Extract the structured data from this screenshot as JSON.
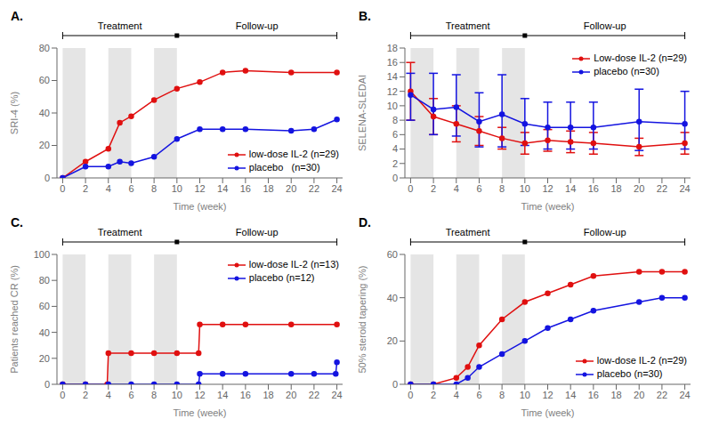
{
  "chart_data": [
    {
      "type": "line",
      "title": "A.",
      "xlabel": "Time  (week)",
      "ylabel": "SRI-4 (%)",
      "xlim": [
        -0.5,
        24.5
      ],
      "xticks": [
        0,
        2,
        4,
        6,
        8,
        10,
        12,
        14,
        16,
        18,
        20,
        22,
        24
      ],
      "ylim": [
        0,
        80
      ],
      "yticks": [
        0,
        20,
        40,
        60,
        80
      ],
      "grid": false,
      "legend": "lower right",
      "bands": [
        [
          0,
          2
        ],
        [
          4,
          6
        ],
        [
          8,
          10
        ]
      ],
      "annotations": [
        {
          "text": "Treatment",
          "x": [
            0,
            10
          ]
        },
        {
          "text": "Follow-up",
          "x": [
            10,
            24
          ]
        }
      ],
      "series": [
        {
          "name": "low-dose IL-2 (n=29)",
          "color": "#e01010",
          "marker": "circle",
          "x": [
            0,
            2,
            4,
            5,
            6,
            8,
            10,
            12,
            14,
            16,
            20,
            24
          ],
          "values": [
            0,
            10,
            18,
            34,
            38,
            48,
            55,
            59,
            65,
            66,
            65,
            65
          ]
        },
        {
          "name": "placebo   (n=30)",
          "color": "#1414e0",
          "marker": "circle",
          "x": [
            0,
            2,
            4,
            5,
            6,
            8,
            10,
            12,
            14,
            16,
            20,
            22,
            24
          ],
          "values": [
            0,
            7,
            7,
            10,
            9,
            13,
            24,
            30,
            30,
            30,
            29,
            30,
            36
          ]
        }
      ]
    },
    {
      "type": "line",
      "title": "B.",
      "xlabel": "Time  (week)",
      "ylabel": "SELENA-SLEDAI",
      "xlim": [
        -0.5,
        24.5
      ],
      "xticks": [
        0,
        2,
        4,
        6,
        8,
        10,
        12,
        14,
        16,
        18,
        20,
        22,
        24
      ],
      "ylim": [
        0,
        18
      ],
      "yticks": [
        0,
        2,
        4,
        6,
        8,
        10,
        12,
        14,
        16,
        18
      ],
      "grid": false,
      "legend": "upper right",
      "bands": [
        [
          0,
          2
        ],
        [
          4,
          6
        ],
        [
          8,
          10
        ]
      ],
      "annotations": [
        {
          "text": "Treatment",
          "x": [
            0,
            10
          ]
        },
        {
          "text": "Follow-up",
          "x": [
            10,
            24
          ]
        }
      ],
      "series": [
        {
          "name": "Low-dose IL-2 (n=29)",
          "color": "#e01010",
          "marker": "circle",
          "x": [
            0,
            2,
            4,
            6,
            8,
            10,
            12,
            14,
            16,
            20,
            24
          ],
          "values": [
            12.0,
            8.5,
            7.5,
            6.5,
            5.5,
            4.8,
            5.2,
            5.0,
            4.8,
            4.3,
            4.8
          ],
          "yerr_lo": [
            4.0,
            2.5,
            2.5,
            2.0,
            1.5,
            1.5,
            1.5,
            1.5,
            1.5,
            1.2,
            1.5
          ],
          "yerr_hi": [
            4.0,
            2.5,
            2.5,
            2.0,
            1.5,
            1.5,
            1.5,
            1.5,
            1.5,
            1.2,
            1.5
          ]
        },
        {
          "name": "placebo (n=30)",
          "color": "#1414e0",
          "marker": "circle",
          "x": [
            0,
            2,
            4,
            6,
            8,
            10,
            12,
            14,
            16,
            20,
            24
          ],
          "values": [
            11.5,
            9.5,
            9.8,
            7.8,
            8.8,
            7.5,
            7.0,
            7.0,
            7.0,
            7.8,
            7.5
          ],
          "yerr_lo": [
            3.5,
            3.5,
            4.0,
            3.5,
            4.5,
            3.0,
            3.0,
            3.0,
            3.0,
            4.0,
            3.5
          ],
          "yerr_hi": [
            3.0,
            5.0,
            4.5,
            4.0,
            5.5,
            3.5,
            3.5,
            3.5,
            3.5,
            4.5,
            4.5
          ]
        }
      ]
    },
    {
      "type": "line",
      "title": "C.",
      "xlabel": "Time (week)",
      "ylabel": "Patients reached CR (%)",
      "xlim": [
        -0.5,
        24.5
      ],
      "xticks": [
        0,
        2,
        4,
        6,
        8,
        10,
        12,
        14,
        16,
        18,
        20,
        22,
        24
      ],
      "ylim": [
        0,
        100
      ],
      "yticks": [
        0,
        20,
        40,
        60,
        80,
        100
      ],
      "grid": false,
      "legend": "upper right",
      "bands": [
        [
          0,
          2
        ],
        [
          4,
          6
        ],
        [
          8,
          10
        ]
      ],
      "annotations": [
        {
          "text": "Treatment",
          "x": [
            0,
            10
          ]
        },
        {
          "text": "Follow-up",
          "x": [
            10,
            24
          ]
        }
      ],
      "series": [
        {
          "name": "low-dose IL-2 (n=13)",
          "color": "#e01010",
          "marker": "circle",
          "x": [
            0,
            2,
            3.9,
            4,
            6,
            8,
            10,
            11.9,
            12,
            14,
            16,
            20,
            24
          ],
          "values": [
            0,
            0,
            0,
            24,
            24,
            24,
            24,
            24,
            46,
            46,
            46,
            46,
            46
          ]
        },
        {
          "name": "placebo (n=12)",
          "color": "#1414e0",
          "marker": "circle",
          "x": [
            0,
            2,
            4,
            6,
            8,
            10,
            11.9,
            12,
            14,
            16,
            20,
            22,
            23.9,
            24
          ],
          "values": [
            0,
            0,
            0,
            0,
            0,
            0,
            0,
            8,
            8,
            8,
            8,
            8,
            8,
            17
          ]
        }
      ]
    },
    {
      "type": "line",
      "title": "D.",
      "xlabel": "Time (week)",
      "ylabel": "50% steroid tapering (%)",
      "xlim": [
        -0.5,
        24.5
      ],
      "xticks": [
        0,
        2,
        4,
        6,
        8,
        10,
        12,
        14,
        16,
        18,
        20,
        22,
        24
      ],
      "ylim": [
        0,
        60
      ],
      "yticks": [
        0,
        20,
        40,
        60
      ],
      "grid": false,
      "legend": "lower right",
      "bands": [
        [
          0,
          2
        ],
        [
          4,
          6
        ],
        [
          8,
          10
        ]
      ],
      "annotations": [
        {
          "text": "Treatment",
          "x": [
            0,
            10
          ]
        },
        {
          "text": "Follow-up",
          "x": [
            10,
            24
          ]
        }
      ],
      "series": [
        {
          "name": "low-dose IL-2 (n=29)",
          "color": "#e01010",
          "marker": "circle",
          "x": [
            0,
            2,
            4,
            5,
            6,
            8,
            10,
            12,
            14,
            16,
            20,
            22,
            24
          ],
          "values": [
            0,
            0,
            3,
            8,
            18,
            30,
            38,
            42,
            46,
            50,
            52,
            52,
            52
          ]
        },
        {
          "name": "placebo (n=30)",
          "color": "#1414e0",
          "marker": "circle",
          "x": [
            0,
            2,
            4,
            5,
            6,
            8,
            10,
            12,
            14,
            16,
            20,
            22,
            24
          ],
          "values": [
            0,
            0,
            0,
            3,
            8,
            14,
            20,
            26,
            30,
            34,
            38,
            40,
            40
          ]
        }
      ]
    }
  ]
}
